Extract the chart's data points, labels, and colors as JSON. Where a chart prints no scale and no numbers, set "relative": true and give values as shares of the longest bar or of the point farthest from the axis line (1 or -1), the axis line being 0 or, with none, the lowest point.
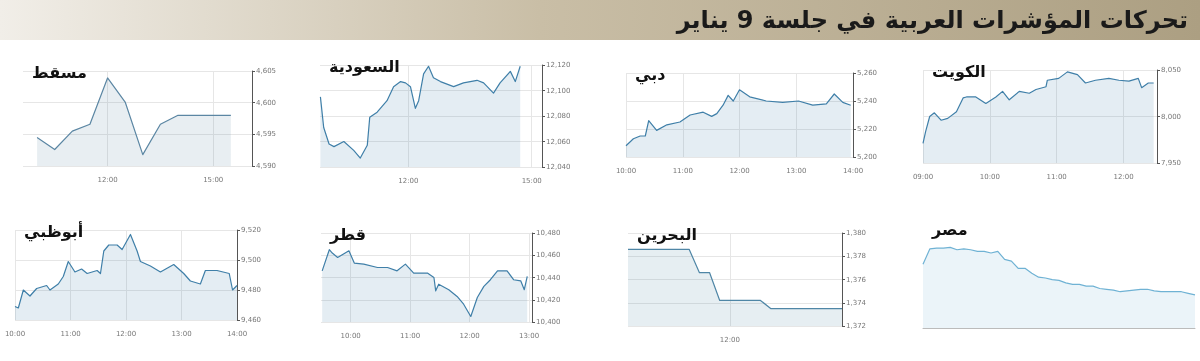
{
  "chart_data": [
    {
      "type": "other",
      "title": "تحركات المؤشرات العربية في جلسة 9 يناير"
    },
    {
      "type": "area",
      "title": "مسقط",
      "color": "#5b86a3",
      "grid": true,
      "x": [
        10,
        10.5,
        11,
        11.5,
        12,
        12.5,
        13,
        13.5,
        14,
        15.5
      ],
      "values": [
        4594.5,
        4592.6,
        4595.5,
        4596.6,
        4603.9,
        4600.1,
        4591.8,
        4596.6,
        4598,
        4598
      ],
      "xlim": [
        9.6,
        16.1
      ],
      "xticks": [
        {
          "value": 12,
          "label": "12:00"
        },
        {
          "value": 15,
          "label": "15:00"
        }
      ],
      "ylim": [
        4590,
        4605
      ],
      "yticks": [
        {
          "value": 4590,
          "label": "4,590"
        },
        {
          "value": 4595,
          "label": "4,595"
        },
        {
          "value": 4600,
          "label": "4,600"
        },
        {
          "value": 4605,
          "label": "4,605"
        }
      ]
    },
    {
      "type": "area",
      "title": "السعودية",
      "color": "#3f7fa8",
      "grid": true,
      "x": [
        9.86,
        9.94,
        10.07,
        10.19,
        10.43,
        10.67,
        10.83,
        11,
        11.06,
        11.24,
        11.48,
        11.64,
        11.81,
        11.93,
        12.05,
        12.17,
        12.25,
        12.37,
        12.49,
        12.61,
        12.78,
        13.1,
        13.34,
        13.67,
        13.83,
        14.07,
        14.23,
        14.48,
        14.6,
        14.72
      ],
      "values": [
        12095,
        12071,
        12058,
        12056,
        12060,
        12053,
        12047,
        12057,
        12079,
        12083,
        12092,
        12103,
        12107,
        12106,
        12103,
        12086,
        12092,
        12113,
        12119,
        12110,
        12107,
        12103,
        12106,
        12108,
        12106,
        12098,
        12106,
        12115,
        12107,
        12119
      ],
      "xlim": [
        9.85,
        15.25
      ],
      "xticks": [
        {
          "value": 12,
          "label": "12:00"
        },
        {
          "value": 15,
          "label": "15:00"
        }
      ],
      "ylim": [
        12040,
        12120
      ],
      "yticks": [
        {
          "value": 12040,
          "label": "12,040"
        },
        {
          "value": 12060,
          "label": "12,060"
        },
        {
          "value": 12080,
          "label": "12,080"
        },
        {
          "value": 12100,
          "label": "12,100"
        },
        {
          "value": 12120,
          "label": "12,120"
        }
      ]
    },
    {
      "type": "area",
      "title": "دبي",
      "color": "#3f7fa8",
      "grid": true,
      "x": [
        10,
        10.13,
        10.25,
        10.34,
        10.4,
        10.54,
        10.72,
        10.95,
        11.13,
        11.36,
        11.51,
        11.6,
        11.71,
        11.8,
        11.89,
        12,
        12.18,
        12.47,
        12.76,
        13.04,
        13.29,
        13.53,
        13.67,
        13.82,
        13.96
      ],
      "values": [
        5208,
        5213,
        5215,
        5215,
        5226,
        5219,
        5223,
        5225,
        5230,
        5232,
        5229,
        5231,
        5237,
        5244,
        5240,
        5248,
        5243,
        5240,
        5239,
        5240,
        5237,
        5238,
        5245,
        5239,
        5237
      ],
      "xlim": [
        10,
        14
      ],
      "xticks": [
        {
          "value": 10,
          "label": "10:00"
        },
        {
          "value": 11,
          "label": "11:00"
        },
        {
          "value": 12,
          "label": "12:00"
        },
        {
          "value": 13,
          "label": "13:00"
        },
        {
          "value": 14,
          "label": "14:00"
        }
      ],
      "ylim": [
        5200,
        5260
      ],
      "yticks": [
        {
          "value": 5200,
          "label": "5,200"
        },
        {
          "value": 5220,
          "label": "5,220"
        },
        {
          "value": 5240,
          "label": "5,240"
        },
        {
          "value": 5260,
          "label": "5,260"
        }
      ]
    },
    {
      "type": "area",
      "title": "الكويت",
      "color": "#3f7fa8",
      "grid": true,
      "x": [
        9,
        9.04,
        9.1,
        9.17,
        9.27,
        9.37,
        9.5,
        9.6,
        9.65,
        9.79,
        9.94,
        10.09,
        10.19,
        10.29,
        10.44,
        10.59,
        10.69,
        10.84,
        10.86,
        11.03,
        11.16,
        11.31,
        11.43,
        11.58,
        11.78,
        11.93,
        12.08,
        12.22,
        12.27,
        12.37,
        12.45
      ],
      "values": [
        7971,
        7984,
        8000,
        8004,
        7996,
        7998,
        8005,
        8020,
        8021,
        8021,
        8014,
        8021,
        8027,
        8018,
        8027,
        8025,
        8029,
        8032,
        8039,
        8041,
        8048,
        8045,
        8036,
        8039,
        8041,
        8039,
        8038,
        8041,
        8031,
        8036,
        8036
      ],
      "xlim": [
        9,
        12.5
      ],
      "xticks": [
        {
          "value": 9,
          "label": "09:00"
        },
        {
          "value": 10,
          "label": "10:00"
        },
        {
          "value": 11,
          "label": "11:00"
        },
        {
          "value": 12,
          "label": "12:00"
        }
      ],
      "ylim": [
        7950,
        8050
      ],
      "yticks": [
        {
          "value": 7950,
          "label": "7,950"
        },
        {
          "value": 8000,
          "label": "8,000"
        },
        {
          "value": 8050,
          "label": "8,050"
        }
      ]
    },
    {
      "type": "area",
      "title": "أبوظبي",
      "color": "#3f7fa8",
      "grid": true,
      "x": [
        10,
        10.06,
        10.15,
        10.27,
        10.39,
        10.57,
        10.63,
        10.78,
        10.87,
        10.96,
        11.08,
        11.2,
        11.3,
        11.48,
        11.54,
        11.6,
        11.69,
        11.84,
        11.93,
        12.08,
        12.2,
        12.26,
        12.44,
        12.62,
        12.86,
        13.04,
        13.16,
        13.34,
        13.43,
        13.64,
        13.86,
        13.92,
        14
      ],
      "values": [
        9469,
        9468,
        9480,
        9476,
        9481,
        9483,
        9480,
        9484,
        9489,
        9499,
        9492,
        9494,
        9491,
        9493,
        9491,
        9506,
        9510,
        9510,
        9507,
        9517,
        9506,
        9499,
        9496,
        9492,
        9497,
        9491,
        9486,
        9484,
        9493,
        9493,
        9491,
        9480,
        9483
      ],
      "xlim": [
        10,
        14
      ],
      "xticks": [
        {
          "value": 10,
          "label": "10:00"
        },
        {
          "value": 11,
          "label": "11:00"
        },
        {
          "value": 12,
          "label": "12:00"
        },
        {
          "value": 13,
          "label": "13:00"
        },
        {
          "value": 14,
          "label": "14:00"
        }
      ],
      "ylim": [
        9460,
        9520
      ],
      "yticks": [
        {
          "value": 9460,
          "label": "9,460"
        },
        {
          "value": 9480,
          "label": "9,480"
        },
        {
          "value": 9500,
          "label": "9,500"
        },
        {
          "value": 9520,
          "label": "9,520"
        }
      ]
    },
    {
      "type": "area",
      "title": "قطر",
      "color": "#3f7fa8",
      "grid": true,
      "x": [
        9.52,
        9.64,
        9.69,
        9.78,
        9.97,
        10.06,
        10.22,
        10.45,
        10.62,
        10.78,
        10.92,
        11.06,
        11.29,
        11.4,
        11.43,
        11.48,
        11.65,
        11.79,
        11.9,
        12.02,
        12.13,
        12.24,
        12.35,
        12.47,
        12.63,
        12.74,
        12.86,
        12.92,
        12.97
      ],
      "values": [
        10446,
        10465,
        10462,
        10458,
        10464,
        10453,
        10452,
        10449,
        10449,
        10446,
        10452,
        10444,
        10444,
        10440,
        10428,
        10434,
        10429,
        10423,
        10416,
        10405,
        10422,
        10432,
        10438,
        10446,
        10446,
        10438,
        10437,
        10429,
        10441
      ],
      "xlim": [
        9.5,
        13.05
      ],
      "xticks": [
        {
          "value": 10,
          "label": "10:00"
        },
        {
          "value": 11,
          "label": "11:00"
        },
        {
          "value": 12,
          "label": "12:00"
        },
        {
          "value": 13,
          "label": "13:00"
        }
      ],
      "ylim": [
        10400,
        10480
      ],
      "yticks": [
        {
          "value": 10400,
          "label": "10,400"
        },
        {
          "value": 10420,
          "label": "10,420"
        },
        {
          "value": 10440,
          "label": "10,440"
        },
        {
          "value": 10460,
          "label": "10,460"
        },
        {
          "value": 10480,
          "label": "10,480"
        }
      ]
    },
    {
      "type": "area",
      "title": "البحرين",
      "color": "#4f86a6",
      "grid": true,
      "categories": [
        null,
        null,
        null,
        null,
        null,
        null,
        null,
        null,
        null,
        null,
        "12:00",
        null,
        null,
        null,
        null,
        null,
        null,
        null,
        null,
        null,
        null,
        null
      ],
      "values": [
        1378.6,
        1378.6,
        1378.6,
        1378.6,
        1378.6,
        1378.6,
        1378.6,
        1376.6,
        1376.6,
        1374.2,
        1374.2,
        1374.2,
        1374.2,
        1374.2,
        1373.5,
        1373.5,
        1373.5,
        1373.5,
        1373.5,
        1373.5,
        1373.5,
        1373.5
      ],
      "ylim": [
        1372,
        1380
      ],
      "yticks": [
        {
          "value": 1372,
          "label": "1,372"
        },
        {
          "value": 1374,
          "label": "1,374"
        },
        {
          "value": 1376,
          "label": "1,376"
        },
        {
          "value": 1378,
          "label": "1,378"
        },
        {
          "value": 1380,
          "label": "1,380"
        }
      ]
    },
    {
      "type": "area",
      "title": "مصر",
      "color": "#6fb2d4",
      "relative": true,
      "categories": [
        null,
        null,
        null,
        null,
        null,
        null,
        null,
        null,
        null,
        null,
        null,
        null,
        null,
        null,
        null,
        null,
        null,
        null,
        null,
        null,
        null,
        null,
        null,
        null,
        null,
        null,
        null,
        null,
        null,
        null,
        null,
        null,
        null,
        null,
        null,
        null,
        null,
        null,
        null,
        null,
        null
      ],
      "values": [
        0.79,
        0.98,
        0.99,
        0.99,
        1,
        0.97,
        0.98,
        0.97,
        0.95,
        0.95,
        0.93,
        0.95,
        0.85,
        0.83,
        0.74,
        0.74,
        0.68,
        0.63,
        0.62,
        0.6,
        0.59,
        0.56,
        0.54,
        0.54,
        0.52,
        0.52,
        0.49,
        0.48,
        0.47,
        0.45,
        0.46,
        0.47,
        0.48,
        0.48,
        0.46,
        0.45,
        0.45,
        0.45,
        0.45,
        0.43,
        0.41
      ]
    }
  ]
}
